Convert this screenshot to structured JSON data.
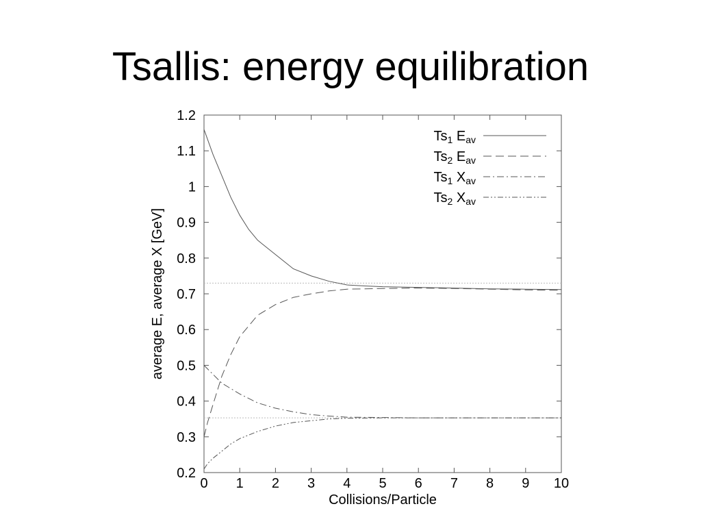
{
  "slide": {
    "title": "Tsallis: energy equilibration"
  },
  "chart_data": {
    "type": "line",
    "xlabel": "Collisions/Particle",
    "ylabel": "average E, average X  [GeV]",
    "xlim": [
      0,
      10
    ],
    "ylim": [
      0.2,
      1.2
    ],
    "xticks": [
      0,
      1,
      2,
      3,
      4,
      5,
      6,
      7,
      8,
      9,
      10
    ],
    "xtick_labels": [
      "0",
      "1",
      "2",
      "3",
      "4",
      "5",
      "6",
      "7",
      "8",
      "9",
      "10"
    ],
    "yticks": [
      0.2,
      0.3,
      0.4,
      0.5,
      0.6,
      0.7,
      0.8,
      0.9,
      1.0,
      1.1,
      1.2
    ],
    "ytick_labels": [
      "0.2",
      "0.3",
      "0.4",
      "0.5",
      "0.6",
      "0.7",
      "0.8",
      "0.9",
      "1",
      "1.1",
      "1.2"
    ],
    "grid": false,
    "legend_position": "top-right",
    "series": [
      {
        "name": "Ts1 Eav",
        "legend": {
          "base": "Ts",
          "sub1": "1",
          "mid": " E",
          "sub2": "av"
        },
        "style": "solid",
        "x": [
          0,
          0.25,
          0.5,
          0.75,
          1,
          1.25,
          1.5,
          2,
          2.5,
          3,
          3.5,
          4,
          4.5,
          5,
          6,
          7,
          8,
          9,
          10
        ],
        "y": [
          1.16,
          1.09,
          1.03,
          0.97,
          0.92,
          0.88,
          0.85,
          0.81,
          0.77,
          0.75,
          0.735,
          0.725,
          0.722,
          0.72,
          0.718,
          0.716,
          0.714,
          0.713,
          0.712
        ]
      },
      {
        "name": "Ts2 Eav",
        "legend": {
          "base": "Ts",
          "sub1": "2",
          "mid": " E",
          "sub2": "av"
        },
        "style": "dashed",
        "x": [
          0,
          0.1,
          0.25,
          0.5,
          0.75,
          1,
          1.5,
          2,
          2.5,
          3,
          3.5,
          4,
          4.5,
          5,
          6,
          7,
          8,
          9,
          10
        ],
        "y": [
          0.3,
          0.34,
          0.39,
          0.47,
          0.53,
          0.58,
          0.64,
          0.67,
          0.69,
          0.7,
          0.708,
          0.713,
          0.714,
          0.715,
          0.716,
          0.715,
          0.713,
          0.711,
          0.71
        ]
      },
      {
        "name": "Ts1 Xav",
        "legend": {
          "base": "Ts",
          "sub1": "1",
          "mid": " X",
          "sub2": "av"
        },
        "style": "dash-dot",
        "x": [
          0,
          0.5,
          1,
          1.5,
          2,
          2.5,
          3,
          3.5,
          4,
          5,
          6,
          7,
          8,
          9,
          10
        ],
        "y": [
          0.5,
          0.45,
          0.42,
          0.395,
          0.38,
          0.37,
          0.362,
          0.358,
          0.355,
          0.354,
          0.353,
          0.353,
          0.353,
          0.353,
          0.353
        ]
      },
      {
        "name": "Ts2 Xav",
        "legend": {
          "base": "Ts",
          "sub1": "2",
          "mid": " X",
          "sub2": "av"
        },
        "style": "dash-dot-dot",
        "x": [
          0,
          0.1,
          0.25,
          0.5,
          0.75,
          1,
          1.5,
          2,
          2.5,
          3,
          3.5,
          4,
          5,
          6,
          7,
          8,
          9,
          10
        ],
        "y": [
          0.21,
          0.225,
          0.24,
          0.26,
          0.28,
          0.295,
          0.315,
          0.33,
          0.34,
          0.345,
          0.35,
          0.352,
          0.353,
          0.353,
          0.353,
          0.353,
          0.353,
          0.353
        ]
      }
    ],
    "reference_lines": [
      {
        "y": 0.73,
        "style": "dotted"
      },
      {
        "y": 0.353,
        "style": "dotted"
      }
    ]
  }
}
